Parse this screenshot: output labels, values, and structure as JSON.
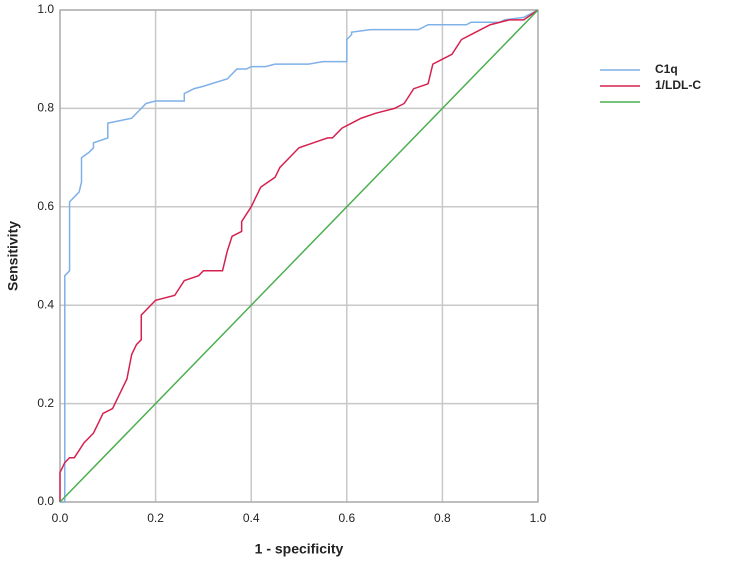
{
  "chart_data": {
    "type": "line",
    "x_label": "1 - specificity",
    "y_label": "Sensitivity",
    "xlim": [
      0,
      1
    ],
    "ylim": [
      0,
      1
    ],
    "xticks": [
      {
        "value": 0,
        "label": "0.0"
      },
      {
        "value": 0.2,
        "label": "0.2"
      },
      {
        "value": 0.4,
        "label": "0.4"
      },
      {
        "value": 0.6,
        "label": "0.6"
      },
      {
        "value": 0.8,
        "label": "0.8"
      },
      {
        "value": 1,
        "label": "1.0"
      }
    ],
    "yticks": [
      {
        "value": 0,
        "label": "0.0"
      },
      {
        "value": 0.2,
        "label": "0.2"
      },
      {
        "value": 0.4,
        "label": "0.4"
      },
      {
        "value": 0.6,
        "label": "0.6"
      },
      {
        "value": 0.8,
        "label": "0.8"
      },
      {
        "value": 1,
        "label": "1.0"
      }
    ],
    "grid": true,
    "legend": "right",
    "series": [
      {
        "name": "C1q",
        "color": "#7fb0e8",
        "x": [
          0,
          0.01,
          0.01,
          0.02,
          0.02,
          0.03,
          0.04,
          0.045,
          0.045,
          0.06,
          0.07,
          0.07,
          0.1,
          0.1,
          0.15,
          0.18,
          0.2,
          0.26,
          0.26,
          0.28,
          0.3,
          0.35,
          0.37,
          0.39,
          0.4,
          0.43,
          0.45,
          0.52,
          0.55,
          0.6,
          0.6,
          0.61,
          0.61,
          0.65,
          0.75,
          0.77,
          0.85,
          0.86,
          0.92,
          0.93,
          0.97,
          0.98,
          1.0
        ],
        "values": [
          0,
          0,
          0.46,
          0.47,
          0.61,
          0.62,
          0.63,
          0.65,
          0.7,
          0.71,
          0.72,
          0.73,
          0.74,
          0.77,
          0.78,
          0.81,
          0.815,
          0.815,
          0.83,
          0.84,
          0.845,
          0.86,
          0.88,
          0.88,
          0.885,
          0.885,
          0.89,
          0.89,
          0.895,
          0.895,
          0.94,
          0.95,
          0.955,
          0.96,
          0.96,
          0.97,
          0.97,
          0.975,
          0.975,
          0.98,
          0.985,
          0.99,
          1.0
        ]
      },
      {
        "name": "1/LDL-C",
        "color": "#d6214f",
        "x": [
          0,
          0,
          0.01,
          0.02,
          0.03,
          0.05,
          0.07,
          0.08,
          0.09,
          0.11,
          0.12,
          0.14,
          0.15,
          0.16,
          0.17,
          0.17,
          0.18,
          0.2,
          0.24,
          0.26,
          0.29,
          0.3,
          0.34,
          0.35,
          0.36,
          0.38,
          0.38,
          0.4,
          0.41,
          0.42,
          0.45,
          0.46,
          0.48,
          0.5,
          0.53,
          0.56,
          0.57,
          0.59,
          0.61,
          0.63,
          0.66,
          0.7,
          0.72,
          0.74,
          0.77,
          0.78,
          0.8,
          0.82,
          0.84,
          0.86,
          0.9,
          0.94,
          0.97,
          1.0
        ],
        "values": [
          0,
          0.06,
          0.08,
          0.09,
          0.09,
          0.12,
          0.14,
          0.16,
          0.18,
          0.19,
          0.21,
          0.25,
          0.3,
          0.32,
          0.33,
          0.38,
          0.39,
          0.41,
          0.42,
          0.45,
          0.46,
          0.47,
          0.47,
          0.51,
          0.54,
          0.55,
          0.57,
          0.6,
          0.62,
          0.64,
          0.66,
          0.68,
          0.7,
          0.72,
          0.73,
          0.74,
          0.74,
          0.76,
          0.77,
          0.78,
          0.79,
          0.8,
          0.81,
          0.84,
          0.85,
          0.89,
          0.9,
          0.91,
          0.94,
          0.95,
          0.97,
          0.98,
          0.98,
          1.0
        ]
      },
      {
        "color": "#4caf50",
        "x": [
          0,
          1
        ],
        "values": [
          0,
          1
        ]
      }
    ]
  }
}
